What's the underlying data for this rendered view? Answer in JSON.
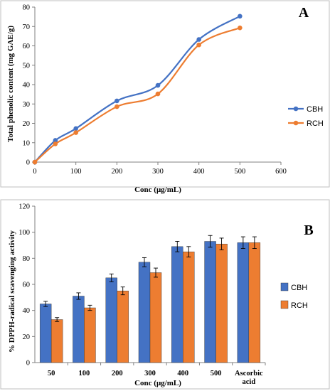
{
  "colors": {
    "CBH": "#4472C4",
    "RCH": "#ED7D31",
    "axis": "#808080",
    "panel_border": "#bfbfbf"
  },
  "chart_data": [
    {
      "type": "line",
      "panel_label": "A",
      "xlabel": "Conc (μg/mL)",
      "ylabel": "Total phenolic content (mg GAE/g)",
      "xlim": [
        0,
        600
      ],
      "ylim": [
        0,
        80
      ],
      "xticks": [
        0,
        100,
        200,
        300,
        400,
        500,
        600
      ],
      "yticks": [
        0,
        10,
        20,
        30,
        40,
        50,
        60,
        70,
        80
      ],
      "grid": false,
      "legend": "right",
      "series": [
        {
          "name": "CBH",
          "color": "#4472C4",
          "x": [
            0,
            50,
            100,
            200,
            300,
            400,
            500
          ],
          "y": [
            0,
            11.2,
            17.3,
            31.6,
            39.6,
            63.3,
            75.3
          ]
        },
        {
          "name": "RCH",
          "color": "#ED7D31",
          "x": [
            0,
            50,
            100,
            200,
            300,
            400,
            500
          ],
          "y": [
            0,
            9.4,
            15.2,
            28.6,
            35.2,
            60.5,
            69.3
          ]
        }
      ]
    },
    {
      "type": "bar",
      "panel_label": "B",
      "xlabel": "Conc (μg/mL)",
      "ylabel": "% DPPH-radical scavenging activity",
      "categories": [
        "50",
        "100",
        "200",
        "300",
        "400",
        "500",
        "Ascorbic acid"
      ],
      "ylim": [
        0,
        120
      ],
      "yticks": [
        0,
        20,
        40,
        60,
        80,
        100,
        120
      ],
      "grid": false,
      "legend": "right",
      "series": [
        {
          "name": "CBH",
          "color": "#4472C4",
          "values": [
            45,
            51,
            65,
            77,
            89,
            93,
            92
          ],
          "errors": [
            2,
            2.5,
            3,
            3.5,
            4,
            4.5,
            4.5
          ]
        },
        {
          "name": "RCH",
          "color": "#ED7D31",
          "values": [
            33,
            42,
            55,
            69,
            85,
            91,
            92
          ],
          "errors": [
            1.5,
            2,
            3,
            3.5,
            4,
            4.5,
            4.5
          ]
        }
      ]
    }
  ]
}
